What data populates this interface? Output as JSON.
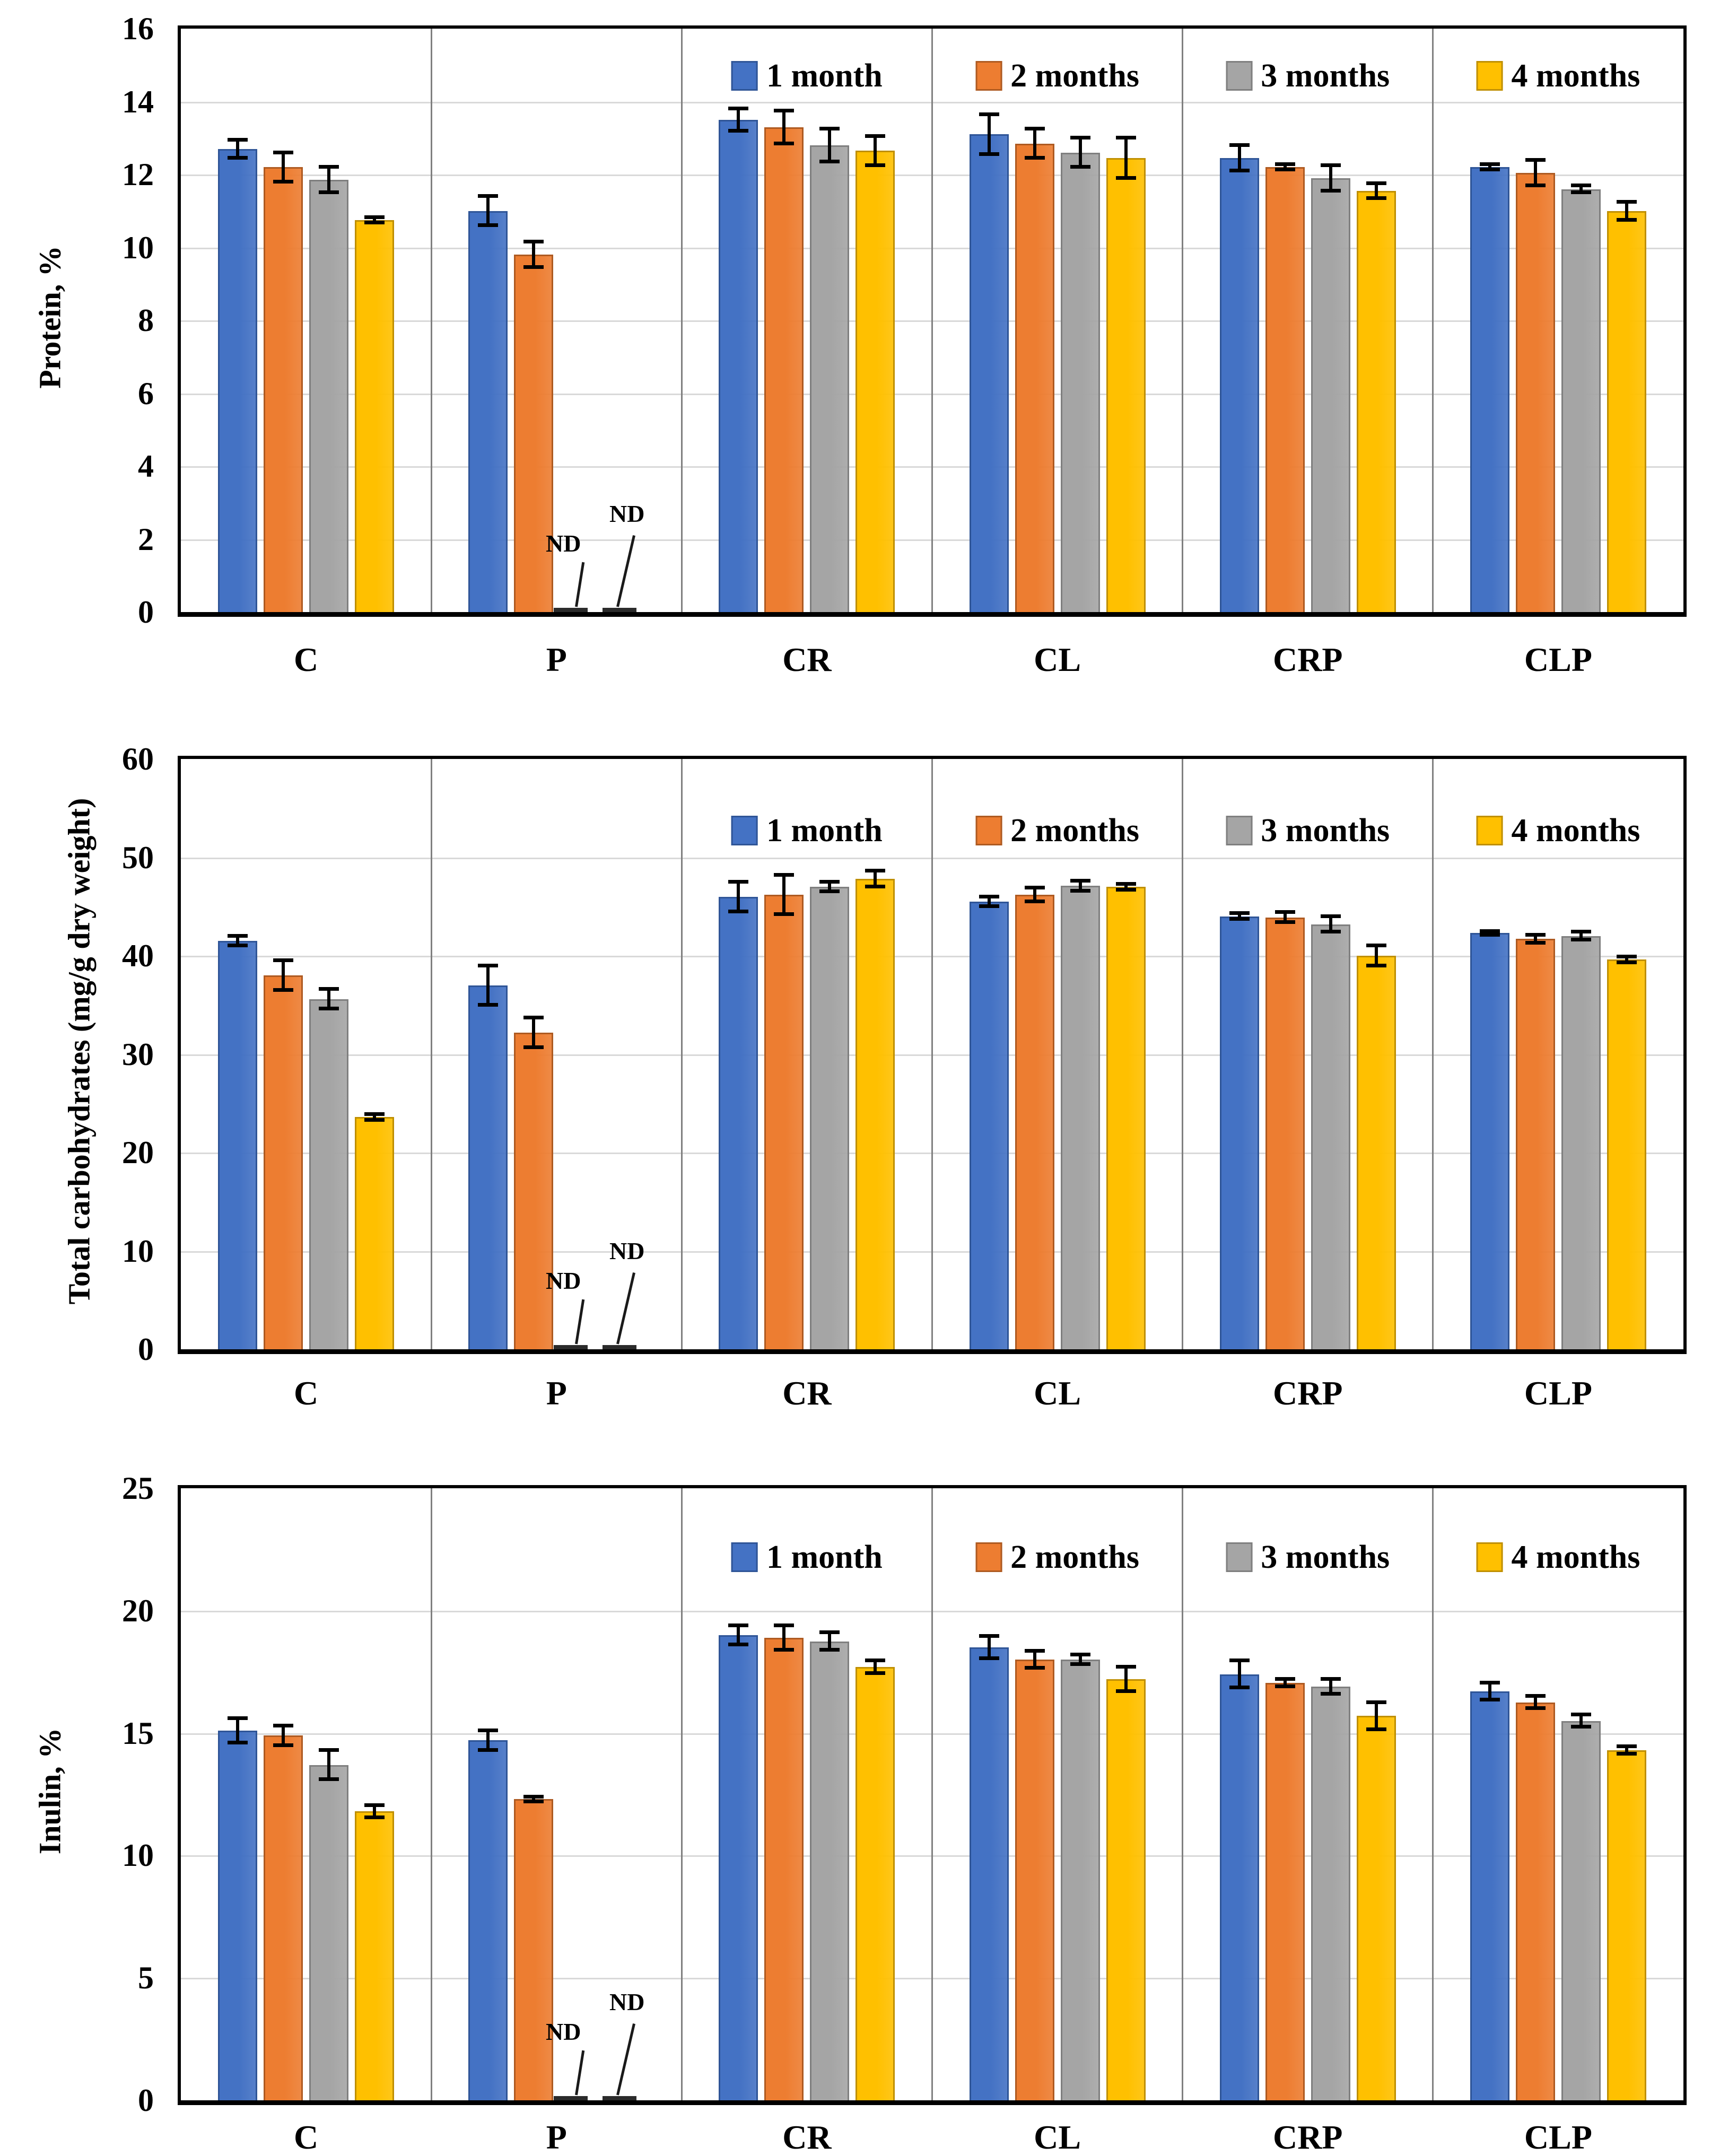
{
  "figure": {
    "nd_label": "ND",
    "legend_labels": [
      "1 month",
      "2 months",
      "3 months",
      "4 months"
    ]
  },
  "colors": {
    "series_fill": [
      "#4472C4",
      "#ED7D31",
      "#A5A5A5",
      "#FFC000"
    ],
    "series_border": [
      "#2F5597",
      "#AE5A21",
      "#7F7F7F",
      "#BF8F00"
    ],
    "gridline": "#D9D9D9",
    "separator": "#808080",
    "axis": "#000000",
    "error_bar": "#000000"
  },
  "chart_data": [
    {
      "type": "bar",
      "title": "",
      "ylabel": "Protein, %",
      "xlabel": "",
      "ylim": [
        0,
        16
      ],
      "y_ticks": [
        0,
        2,
        4,
        6,
        8,
        10,
        12,
        14,
        16
      ],
      "grid": true,
      "legend_position": "top-inside",
      "categories": [
        "C",
        "P",
        "CR",
        "CL",
        "CRP",
        "CLP"
      ],
      "legend": [
        "1 month",
        "2 months",
        "3 months",
        "4 months"
      ],
      "series": [
        {
          "name": "1 month",
          "values": [
            12.7,
            11.0,
            13.5,
            13.1,
            12.45,
            12.2
          ],
          "errors": [
            0.25,
            0.4,
            0.3,
            0.55,
            0.35,
            0.07
          ]
        },
        {
          "name": "2 months",
          "values": [
            12.2,
            9.8,
            13.3,
            12.85,
            12.2,
            12.05
          ],
          "errors": [
            0.4,
            0.35,
            0.45,
            0.4,
            0.07,
            0.35
          ]
        },
        {
          "name": "3 months",
          "values": [
            11.85,
            null,
            12.8,
            12.6,
            11.9,
            11.6
          ],
          "errors": [
            0.35,
            null,
            0.45,
            0.4,
            0.35,
            0.1
          ]
        },
        {
          "name": "4 months",
          "values": [
            10.75,
            null,
            12.65,
            12.45,
            11.55,
            11.0
          ],
          "errors": [
            0.07,
            null,
            0.4,
            0.55,
            0.2,
            0.25
          ]
        }
      ],
      "nd_annotations": [
        {
          "category": "P",
          "series": "3 months"
        },
        {
          "category": "P",
          "series": "4 months"
        }
      ]
    },
    {
      "type": "bar",
      "title": "",
      "ylabel": "Total carbohydrates (mg/g dry weight)",
      "xlabel": "",
      "ylim": [
        0,
        60
      ],
      "y_ticks": [
        0,
        10,
        20,
        30,
        40,
        50,
        60
      ],
      "grid": true,
      "legend_position": "top-inside",
      "categories": [
        "C",
        "P",
        "CR",
        "CL",
        "CRP",
        "CLP"
      ],
      "legend": [
        "1 month",
        "2 months",
        "3 months",
        "4 months"
      ],
      "series": [
        {
          "name": "1 month",
          "values": [
            41.5,
            37.0,
            46.0,
            45.5,
            44.0,
            42.3
          ],
          "errors": [
            0.5,
            2.0,
            1.5,
            0.5,
            0.3,
            0.2
          ]
        },
        {
          "name": "2 months",
          "values": [
            38.0,
            32.2,
            46.2,
            46.2,
            43.9,
            41.7
          ],
          "errors": [
            1.5,
            1.5,
            2.0,
            0.7,
            0.5,
            0.4
          ]
        },
        {
          "name": "3 months",
          "values": [
            35.6,
            null,
            47.0,
            47.1,
            43.2,
            42.0
          ],
          "errors": [
            1.0,
            null,
            0.5,
            0.5,
            0.8,
            0.4
          ]
        },
        {
          "name": "4 months",
          "values": [
            23.6,
            null,
            47.8,
            47.0,
            40.0,
            39.6
          ],
          "errors": [
            0.3,
            null,
            0.8,
            0.3,
            1.0,
            0.3
          ]
        }
      ],
      "nd_annotations": [
        {
          "category": "P",
          "series": "3 months"
        },
        {
          "category": "P",
          "series": "4 months"
        }
      ]
    },
    {
      "type": "bar",
      "title": "",
      "ylabel": "Inulin, %",
      "xlabel": "",
      "ylim": [
        0,
        25
      ],
      "y_ticks": [
        0,
        5,
        10,
        15,
        20,
        25
      ],
      "grid": true,
      "legend_position": "top-inside",
      "categories": [
        "C",
        "P",
        "CR",
        "CL",
        "CRP",
        "CLP"
      ],
      "legend": [
        "1 month",
        "2 months",
        "3 months",
        "4 months"
      ],
      "series": [
        {
          "name": "1 month",
          "values": [
            15.1,
            14.7,
            19.0,
            18.5,
            17.4,
            16.7
          ],
          "errors": [
            0.5,
            0.4,
            0.4,
            0.45,
            0.55,
            0.35
          ]
        },
        {
          "name": "2 months",
          "values": [
            14.9,
            12.3,
            18.9,
            18.0,
            17.05,
            16.25
          ],
          "errors": [
            0.4,
            0.1,
            0.5,
            0.35,
            0.15,
            0.25
          ]
        },
        {
          "name": "3 months",
          "values": [
            13.7,
            null,
            18.75,
            18.0,
            16.9,
            15.5
          ],
          "errors": [
            0.6,
            null,
            0.35,
            0.2,
            0.3,
            0.25
          ]
        },
        {
          "name": "4 months",
          "values": [
            11.8,
            null,
            17.7,
            17.2,
            15.7,
            14.3
          ],
          "errors": [
            0.25,
            null,
            0.25,
            0.5,
            0.55,
            0.15
          ]
        }
      ],
      "nd_annotations": [
        {
          "category": "P",
          "series": "3 months"
        },
        {
          "category": "P",
          "series": "4 months"
        }
      ]
    }
  ]
}
